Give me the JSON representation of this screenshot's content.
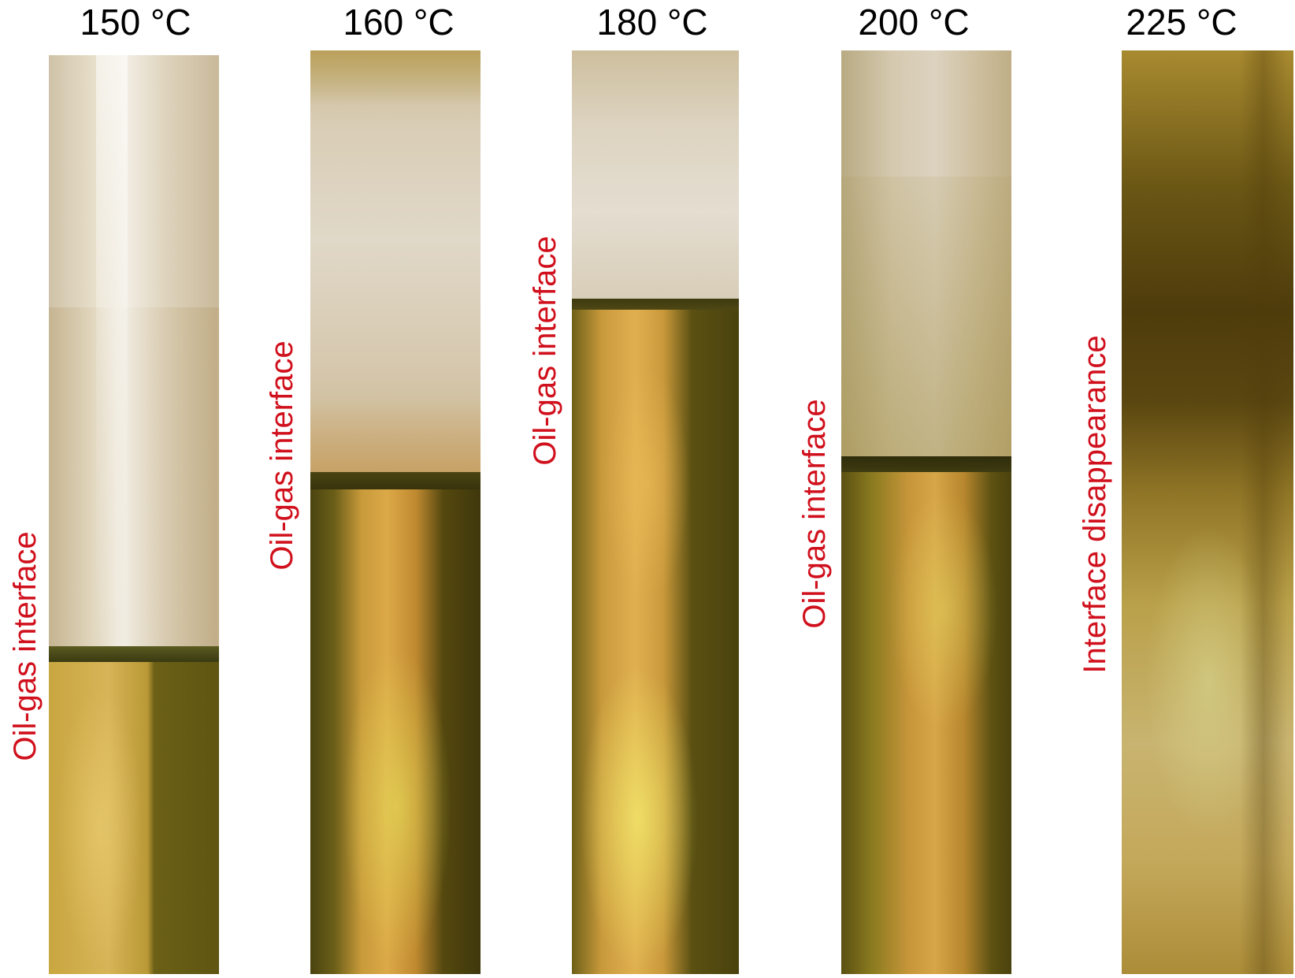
{
  "panels": [
    {
      "temperature": "150 °C",
      "label": "Oil-gas interface"
    },
    {
      "temperature": "160 °C",
      "label": "Oil-gas interface"
    },
    {
      "temperature": "180 °C",
      "label": "Oil-gas interface"
    },
    {
      "temperature": "200 °C",
      "label": "Oil-gas interface"
    },
    {
      "temperature": "225 °C",
      "label": "Interface disappearance"
    }
  ],
  "colors": {
    "label_text": "#d0101c",
    "gas_phase": "#d9cbb3",
    "oil_phase": "#8a7a18",
    "interface_line": "#3a3a12"
  }
}
